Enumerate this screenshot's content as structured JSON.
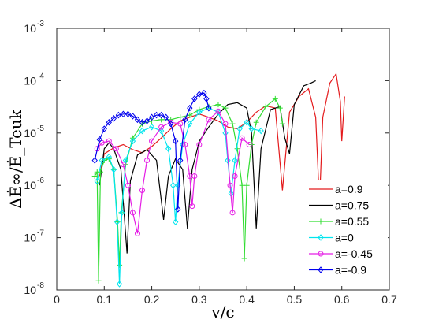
{
  "chart_data": {
    "type": "line",
    "xlabel": "v/c",
    "ylabel": "ΔĖ∞/Ė_Teuk",
    "yscale": "log",
    "xlim": [
      0,
      0.7
    ],
    "ylim": [
      1e-08,
      0.001
    ],
    "x_ticks": [
      "0",
      "0.1",
      "0.2",
      "0.3",
      "0.4",
      "0.5",
      "0.6",
      "0.7"
    ],
    "y_tick_exponents": [
      "-3",
      "-4",
      "-5",
      "-6",
      "-7",
      "-8"
    ],
    "y_tick_base": "10",
    "grid": false,
    "legend_position": "bottom-right",
    "series": [
      {
        "name": "a=0.9",
        "color": "#e41a1c",
        "marker": "none",
        "points": [
          [
            0.09,
            1.5e-06
          ],
          [
            0.1,
            4e-06
          ],
          [
            0.12,
            5.2e-06
          ],
          [
            0.14,
            6e-06
          ],
          [
            0.16,
            4.8e-06
          ],
          [
            0.18,
            4.2e-06
          ],
          [
            0.2,
            5.5e-06
          ],
          [
            0.22,
            8e-06
          ],
          [
            0.24,
            1.2e-05
          ],
          [
            0.26,
            1.7e-05
          ],
          [
            0.28,
            2e-05
          ],
          [
            0.3,
            2.3e-05
          ],
          [
            0.32,
            2e-05
          ],
          [
            0.34,
            1.7e-05
          ],
          [
            0.36,
            1.3e-05
          ],
          [
            0.38,
            1.2e-05
          ],
          [
            0.4,
            1.6e-05
          ],
          [
            0.42,
            2.5e-05
          ],
          [
            0.44,
            3.3e-05
          ],
          [
            0.46,
            3e-05
          ],
          [
            0.475,
            8e-07
          ],
          [
            0.49,
            2.5e-05
          ],
          [
            0.51,
            5e-05
          ],
          [
            0.53,
            7e-05
          ],
          [
            0.545,
            2e-05
          ],
          [
            0.553,
            4.5e-07
          ],
          [
            0.56,
            2e-05
          ],
          [
            0.575,
            9e-05
          ],
          [
            0.588,
            0.000135
          ],
          [
            0.597,
            4e-05
          ],
          [
            0.6,
            7e-06
          ],
          [
            0.606,
            5e-05
          ]
        ]
      },
      {
        "name": "a=0.75",
        "color": "#000000",
        "marker": "none",
        "points": [
          [
            0.09,
            1e-06
          ],
          [
            0.1,
            5e-06
          ],
          [
            0.11,
            6.5e-06
          ],
          [
            0.12,
            5e-06
          ],
          [
            0.135,
            2e-06
          ],
          [
            0.148,
            5e-08
          ],
          [
            0.155,
            1.2e-06
          ],
          [
            0.17,
            3.8e-06
          ],
          [
            0.19,
            4.8e-06
          ],
          [
            0.21,
            3e-06
          ],
          [
            0.225,
            2.2e-07
          ],
          [
            0.235,
            1.5e-06
          ],
          [
            0.25,
            3.2e-06
          ],
          [
            0.265,
            2e-06
          ],
          [
            0.275,
            1.5e-07
          ],
          [
            0.285,
            2e-06
          ],
          [
            0.3,
            7e-06
          ],
          [
            0.32,
            1.3e-05
          ],
          [
            0.34,
            2.3e-05
          ],
          [
            0.36,
            3.5e-05
          ],
          [
            0.38,
            3.8e-05
          ],
          [
            0.4,
            3e-05
          ],
          [
            0.41,
            1e-05
          ],
          [
            0.42,
            1.5e-07
          ],
          [
            0.43,
            5e-06
          ],
          [
            0.45,
            2.8e-05
          ],
          [
            0.47,
            3.2e-05
          ],
          [
            0.48,
            8e-06
          ],
          [
            0.49,
            4e-06
          ],
          [
            0.5,
            3.5e-05
          ],
          [
            0.52,
            8e-05
          ],
          [
            0.535,
            9e-05
          ],
          [
            0.545,
            0.0001
          ]
        ]
      },
      {
        "name": "a=0.55",
        "color": "#33dd33",
        "marker": "+",
        "points": [
          [
            0.08,
            1.5e-06
          ],
          [
            0.085,
            1.8e-06
          ],
          [
            0.088,
            1.5e-08
          ],
          [
            0.092,
            1.8e-06
          ],
          [
            0.1,
            3e-06
          ],
          [
            0.11,
            3.2e-06
          ],
          [
            0.12,
            2e-06
          ],
          [
            0.128,
            2e-07
          ],
          [
            0.132,
            3e-08
          ],
          [
            0.136,
            3e-07
          ],
          [
            0.145,
            2.5e-06
          ],
          [
            0.16,
            8e-06
          ],
          [
            0.18,
            1.5e-05
          ],
          [
            0.2,
            1.7e-05
          ],
          [
            0.22,
            1.8e-05
          ],
          [
            0.24,
            1.8e-05
          ],
          [
            0.26,
            2e-05
          ],
          [
            0.28,
            2.2e-05
          ],
          [
            0.3,
            2.8e-05
          ],
          [
            0.32,
            3.2e-05
          ],
          [
            0.34,
            3.5e-05
          ],
          [
            0.355,
            3e-05
          ],
          [
            0.37,
            1.5e-05
          ],
          [
            0.38,
            5e-06
          ],
          [
            0.39,
            1e-06
          ],
          [
            0.395,
            4e-08
          ],
          [
            0.4,
            1e-06
          ],
          [
            0.41,
            6e-06
          ],
          [
            0.42,
            1.6e-05
          ],
          [
            0.44,
            3.2e-05
          ],
          [
            0.46,
            4.5e-05
          ],
          [
            0.47,
            3e-05
          ],
          [
            0.475,
            1.5e-05
          ]
        ]
      },
      {
        "name": "a=0",
        "color": "#00e5ee",
        "marker": "diamond",
        "points": [
          [
            0.085,
            1.2e-06
          ],
          [
            0.095,
            3e-06
          ],
          [
            0.11,
            3.5e-06
          ],
          [
            0.12,
            2e-06
          ],
          [
            0.127,
            2e-07
          ],
          [
            0.132,
            1.3e-08
          ],
          [
            0.137,
            3e-07
          ],
          [
            0.145,
            3e-06
          ],
          [
            0.16,
            7e-06
          ],
          [
            0.18,
            1.1e-05
          ],
          [
            0.2,
            1.3e-05
          ],
          [
            0.22,
            1.1e-05
          ],
          [
            0.235,
            5e-06
          ],
          [
            0.245,
            1e-06
          ],
          [
            0.25,
            2e-07
          ],
          [
            0.255,
            1e-06
          ],
          [
            0.265,
            6e-06
          ],
          [
            0.28,
            1.5e-05
          ],
          [
            0.3,
            2.5e-05
          ],
          [
            0.32,
            3e-05
          ],
          [
            0.34,
            2.5e-05
          ],
          [
            0.355,
            1e-05
          ],
          [
            0.36,
            3e-06
          ],
          [
            0.367,
            7e-07
          ],
          [
            0.375,
            3e-06
          ],
          [
            0.385,
            1.2e-05
          ],
          [
            0.4,
            1.6e-05
          ],
          [
            0.41,
            1.2e-05
          ],
          [
            0.43,
            1.1e-05
          ]
        ]
      },
      {
        "name": "a=-0.45",
        "color": "#e51ee5",
        "marker": "circle",
        "points": [
          [
            0.085,
            5e-06
          ],
          [
            0.095,
            6.5e-06
          ],
          [
            0.11,
            7e-06
          ],
          [
            0.125,
            5e-06
          ],
          [
            0.14,
            2.5e-06
          ],
          [
            0.15,
            1e-06
          ],
          [
            0.16,
            3e-07
          ],
          [
            0.17,
            1.2e-07
          ],
          [
            0.18,
            8e-07
          ],
          [
            0.19,
            3e-06
          ],
          [
            0.2,
            7e-06
          ],
          [
            0.22,
            1.3e-05
          ],
          [
            0.24,
            1.6e-05
          ],
          [
            0.26,
            1.5e-05
          ],
          [
            0.27,
            6e-06
          ],
          [
            0.28,
            1.5e-06
          ],
          [
            0.285,
            4e-07
          ],
          [
            0.29,
            1.5e-06
          ],
          [
            0.3,
            6e-06
          ],
          [
            0.32,
            1.8e-05
          ],
          [
            0.34,
            2.6e-05
          ],
          [
            0.355,
            1.5e-05
          ],
          [
            0.365,
            1e-06
          ],
          [
            0.37,
            3e-07
          ],
          [
            0.375,
            1.5e-06
          ],
          [
            0.39,
            8e-06
          ],
          [
            0.405,
            6e-06
          ]
        ]
      },
      {
        "name": "a=-0.9",
        "color": "#0000ee",
        "marker": "diamond",
        "points": [
          [
            0.08,
            3e-06
          ],
          [
            0.09,
            7.5e-06
          ],
          [
            0.1,
            1.2e-05
          ],
          [
            0.11,
            1.6e-05
          ],
          [
            0.12,
            1.9e-05
          ],
          [
            0.13,
            2.2e-05
          ],
          [
            0.14,
            2.3e-05
          ],
          [
            0.15,
            2.3e-05
          ],
          [
            0.16,
            2.1e-05
          ],
          [
            0.17,
            1.8e-05
          ],
          [
            0.18,
            1.6e-05
          ],
          [
            0.19,
            1.7e-05
          ],
          [
            0.2,
            2e-05
          ],
          [
            0.21,
            2.2e-05
          ],
          [
            0.22,
            2.2e-05
          ],
          [
            0.23,
            2e-05
          ],
          [
            0.24,
            1.5e-05
          ],
          [
            0.25,
            7e-06
          ],
          [
            0.255,
            3.5e-07
          ],
          [
            0.26,
            3e-06
          ],
          [
            0.27,
            1.8e-05
          ],
          [
            0.28,
            3e-05
          ],
          [
            0.29,
            4.5e-05
          ],
          [
            0.3,
            5.5e-05
          ],
          [
            0.31,
            5.8e-05
          ],
          [
            0.315,
            4.5e-05
          ],
          [
            0.32,
            3e-05
          ]
        ]
      }
    ]
  }
}
